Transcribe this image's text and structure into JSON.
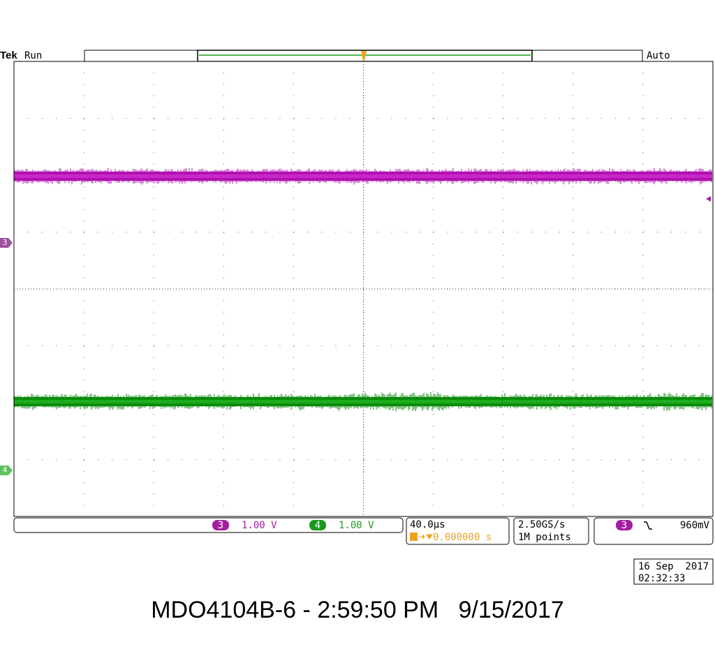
{
  "header": {
    "brand": "Tek",
    "state": "Run",
    "trigger_mode": "Auto",
    "trigger_marker": "T"
  },
  "channels": [
    {
      "number": "3",
      "scale": "1.00 V"
    },
    {
      "number": "4",
      "scale": "1.00 V"
    }
  ],
  "timebase": {
    "scale": "40.0µs",
    "position": "0.000000 s"
  },
  "acquisition": {
    "sample_rate": "2.50GS/s",
    "record_length": "1M points"
  },
  "trigger": {
    "source": "3",
    "level": "960mV"
  },
  "clock": {
    "date": "16 Sep  2017",
    "time": "02:32:33"
  },
  "caption": "MDO4104B-6 - 2:59:50 PM   9/15/2017"
}
